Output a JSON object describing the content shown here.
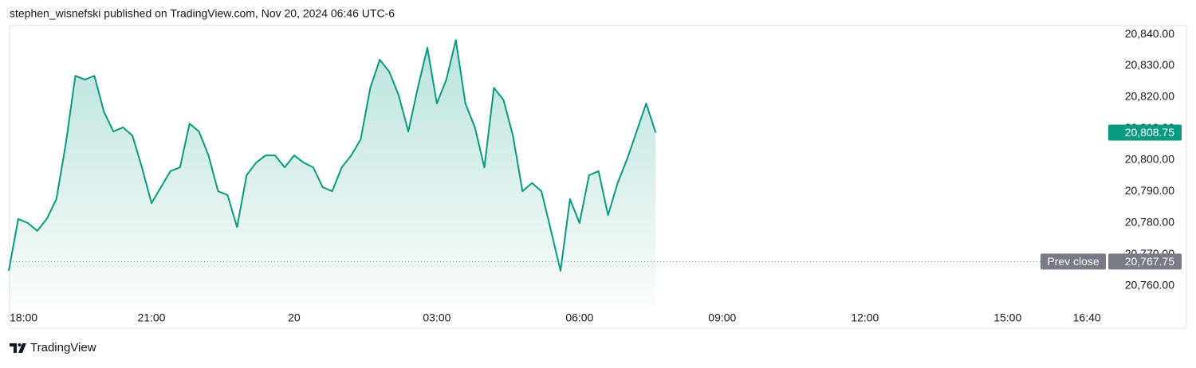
{
  "header": "stephen_wisnefski published on TradingView.com, Nov 20, 2024 06:46 UTC-6",
  "chart_data": {
    "type": "area",
    "color": "#089981",
    "x": [
      18,
      18.2,
      18.4,
      18.6,
      18.8,
      19,
      19.2,
      19.4,
      19.6,
      19.8,
      20,
      20.2,
      20.4,
      20.6,
      20.8,
      21,
      21.2,
      21.4,
      21.6,
      21.8,
      22,
      22.2,
      22.4,
      22.6,
      22.8,
      23,
      23.2,
      23.4,
      23.6,
      23.8,
      24,
      24.2,
      24.4,
      24.6,
      24.8,
      25,
      25.2,
      25.4,
      25.6,
      25.8,
      26,
      26.2,
      26.4,
      26.6,
      26.8,
      27,
      27.2,
      27.4,
      27.6,
      27.8,
      28,
      28.2,
      28.4,
      28.6,
      28.8,
      29,
      29.2,
      29.4,
      29.6,
      29.8,
      30,
      30.2,
      30.4,
      30.6,
      30.8,
      31,
      31.2,
      31.4,
      31.6
    ],
    "values": [
      20764.8,
      20781.3,
      20780,
      20777.5,
      20781.3,
      20787.6,
      20805.3,
      20826.8,
      20825.6,
      20826.8,
      20815.4,
      20809.1,
      20810.4,
      20807.8,
      20797.7,
      20786.3,
      20791.4,
      20796.5,
      20797.7,
      20811.6,
      20809.1,
      20801.5,
      20790.1,
      20788.9,
      20778.7,
      20795.2,
      20799.2,
      20801.5,
      20801.5,
      20797.7,
      20801.5,
      20799.2,
      20797.7,
      20791.4,
      20790.1,
      20797.7,
      20801.5,
      20806.6,
      20823,
      20831.9,
      20828.1,
      20820.5,
      20809.1,
      20823,
      20835.7,
      20818,
      20825.6,
      20838.2,
      20818,
      20810.4,
      20797.7,
      20823,
      20819.2,
      20807.8,
      20790.1,
      20792.7,
      20790.1,
      20777.5,
      20764.8,
      20787.6,
      20780,
      20795.2,
      20796.5,
      20782.5,
      20792.7,
      20800.3,
      20809.1,
      20818,
      20808.75
    ],
    "xlim": [
      18,
      41.1
    ],
    "xticks": [
      {
        "value": 18,
        "label": "18:00"
      },
      {
        "value": 21,
        "label": "21:00"
      },
      {
        "value": 24,
        "label": "20"
      },
      {
        "value": 27,
        "label": "03:00"
      },
      {
        "value": 30,
        "label": "06:00"
      },
      {
        "value": 33,
        "label": "09:00"
      },
      {
        "value": 36,
        "label": "12:00"
      },
      {
        "value": 39,
        "label": "15:00"
      },
      {
        "value": 40.667,
        "label": "16:40"
      }
    ],
    "ylim": [
      20753.4,
      20842.8
    ],
    "yticks": [
      {
        "value": 20760,
        "label": "20,760.00"
      },
      {
        "value": 20770,
        "label": "20,770.00"
      },
      {
        "value": 20780,
        "label": "20,780.00"
      },
      {
        "value": 20790,
        "label": "20,790.00"
      },
      {
        "value": 20800,
        "label": "20,800.00"
      },
      {
        "value": 20810,
        "label": "20,810.00"
      },
      {
        "value": 20820,
        "label": "20,820.00"
      },
      {
        "value": 20830,
        "label": "20,830.00"
      },
      {
        "value": 20840,
        "label": "20,840.00"
      }
    ],
    "last_price": {
      "value": 20808.75,
      "label": "20,808.75"
    },
    "prev_close": {
      "label": "Prev close",
      "value": 20767.75,
      "value_label": "20,767.75"
    }
  },
  "footer": "TradingView"
}
